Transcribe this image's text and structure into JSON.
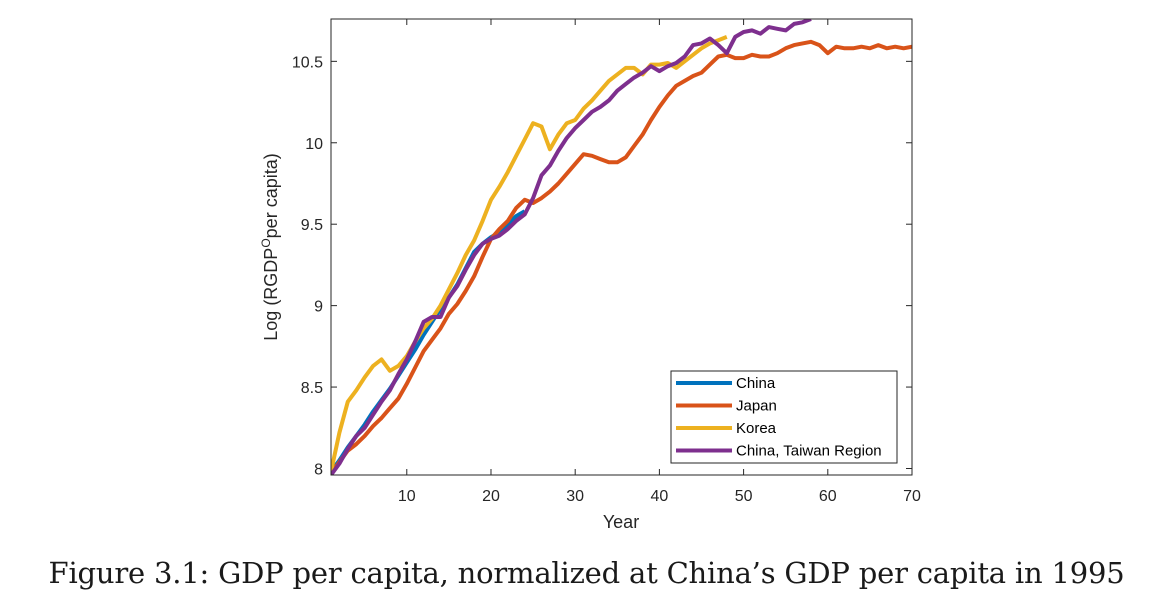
{
  "chart_data": {
    "type": "line",
    "xlabel": "Year",
    "ylabel_main": "Log (RGDP",
    "ylabel_sup": "O",
    "ylabel_tail": "per capita)",
    "xlim": [
      1,
      70
    ],
    "ylim": [
      7.96,
      10.76
    ],
    "xticks": [
      10,
      20,
      30,
      40,
      50,
      60,
      70
    ],
    "yticks": [
      8,
      8.5,
      9,
      9.5,
      10,
      10.5
    ],
    "yticklabels": [
      "8",
      "8.5",
      "9",
      "9.5",
      "10",
      "10.5"
    ],
    "legend_position": "bottom-right",
    "series": [
      {
        "name": "China",
        "color": "#0072bd",
        "x": [
          1,
          2,
          3,
          4,
          5,
          6,
          7,
          8,
          9,
          10,
          11,
          12,
          13,
          14,
          15,
          16,
          17,
          18,
          19,
          20,
          21,
          22,
          23,
          24
        ],
        "y": [
          7.98,
          8.05,
          8.13,
          8.2,
          8.27,
          8.35,
          8.42,
          8.49,
          8.57,
          8.65,
          8.73,
          8.82,
          8.9,
          8.98,
          9.05,
          9.13,
          9.23,
          9.33,
          9.38,
          9.42,
          9.45,
          9.5,
          9.55,
          9.58
        ]
      },
      {
        "name": "Japan",
        "color": "#d95319",
        "x": [
          1,
          2,
          3,
          4,
          5,
          6,
          7,
          8,
          9,
          10,
          11,
          12,
          13,
          14,
          15,
          16,
          17,
          18,
          19,
          20,
          21,
          22,
          23,
          24,
          25,
          26,
          27,
          28,
          29,
          30,
          31,
          32,
          33,
          34,
          35,
          36,
          37,
          38,
          39,
          40,
          41,
          42,
          43,
          44,
          45,
          46,
          47,
          48,
          49,
          50,
          51,
          52,
          53,
          54,
          55,
          56,
          57,
          58,
          59,
          60,
          61,
          62,
          63,
          64,
          65,
          66,
          67,
          68,
          69,
          70
        ],
        "y": [
          7.97,
          8.04,
          8.11,
          8.15,
          8.2,
          8.26,
          8.31,
          8.37,
          8.43,
          8.52,
          8.62,
          8.72,
          8.79,
          8.86,
          8.95,
          9.01,
          9.09,
          9.18,
          9.3,
          9.41,
          9.47,
          9.52,
          9.6,
          9.65,
          9.63,
          9.66,
          9.7,
          9.75,
          9.81,
          9.87,
          9.93,
          9.92,
          9.9,
          9.88,
          9.88,
          9.91,
          9.98,
          10.05,
          10.14,
          10.22,
          10.29,
          10.35,
          10.38,
          10.41,
          10.43,
          10.48,
          10.53,
          10.54,
          10.52,
          10.52,
          10.54,
          10.53,
          10.53,
          10.55,
          10.58,
          10.6,
          10.61,
          10.62,
          10.6,
          10.55,
          10.59,
          10.58,
          10.58,
          10.59,
          10.58,
          10.6,
          10.58,
          10.59,
          10.58,
          10.59
        ]
      },
      {
        "name": "Korea",
        "color": "#edb120",
        "x": [
          1,
          2,
          3,
          4,
          5,
          6,
          7,
          8,
          9,
          10,
          11,
          12,
          13,
          14,
          15,
          16,
          17,
          18,
          19,
          20,
          21,
          22,
          23,
          24,
          25,
          26,
          27,
          28,
          29,
          30,
          31,
          32,
          33,
          34,
          35,
          36,
          37,
          38,
          39,
          40,
          41,
          42,
          43,
          44,
          45,
          46,
          47,
          48
        ],
        "y": [
          7.98,
          8.22,
          8.41,
          8.48,
          8.56,
          8.63,
          8.67,
          8.6,
          8.63,
          8.69,
          8.78,
          8.86,
          8.92,
          9.0,
          9.1,
          9.2,
          9.31,
          9.4,
          9.52,
          9.65,
          9.73,
          9.82,
          9.92,
          10.02,
          10.12,
          10.1,
          9.96,
          10.05,
          10.12,
          10.14,
          10.21,
          10.26,
          10.32,
          10.38,
          10.42,
          10.46,
          10.46,
          10.42,
          10.48,
          10.48,
          10.49,
          10.46,
          10.5,
          10.54,
          10.58,
          10.61,
          10.63,
          10.65
        ]
      },
      {
        "name": "China, Taiwan Region",
        "color": "#7e2f8e",
        "x": [
          1,
          2,
          3,
          4,
          5,
          6,
          7,
          8,
          9,
          10,
          11,
          12,
          13,
          14,
          15,
          16,
          17,
          18,
          19,
          20,
          21,
          22,
          23,
          24,
          25,
          26,
          27,
          28,
          29,
          30,
          31,
          32,
          33,
          34,
          35,
          36,
          37,
          38,
          39,
          40,
          41,
          42,
          43,
          44,
          45,
          46,
          47,
          48,
          49,
          50,
          51,
          52,
          53,
          54,
          55,
          56,
          57,
          58
        ],
        "y": [
          7.96,
          8.03,
          8.12,
          8.2,
          8.25,
          8.33,
          8.41,
          8.48,
          8.58,
          8.67,
          8.78,
          8.9,
          8.93,
          8.93,
          9.05,
          9.12,
          9.22,
          9.31,
          9.38,
          9.41,
          9.43,
          9.47,
          9.52,
          9.56,
          9.66,
          9.8,
          9.86,
          9.95,
          10.03,
          10.09,
          10.14,
          10.19,
          10.22,
          10.26,
          10.32,
          10.36,
          10.4,
          10.43,
          10.47,
          10.44,
          10.47,
          10.49,
          10.53,
          10.6,
          10.61,
          10.64,
          10.6,
          10.55,
          10.65,
          10.68,
          10.69,
          10.67,
          10.71,
          10.7,
          10.69,
          10.73,
          10.74,
          10.76
        ]
      }
    ]
  },
  "caption": "Figure 3.1: GDP per capita, normalized at China’s GDP per capita in 1995"
}
